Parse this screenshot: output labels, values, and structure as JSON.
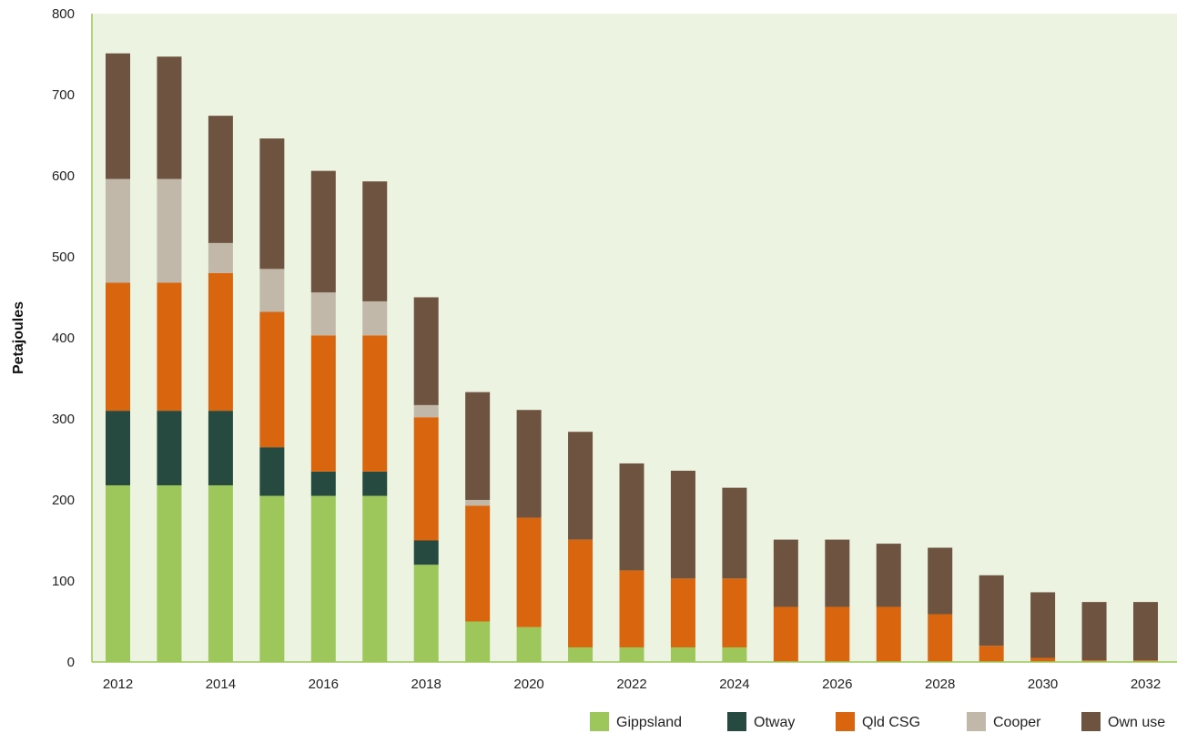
{
  "chart_data": {
    "type": "bar",
    "stacked": true,
    "xlabel": "",
    "ylabel": "Petajoules",
    "ylim": [
      0,
      800
    ],
    "yticks": [
      "0",
      "100",
      "200",
      "300",
      "400",
      "500",
      "600",
      "700",
      "800"
    ],
    "categories": [
      "2012",
      "2013",
      "2014",
      "2015",
      "2016",
      "2017",
      "2018",
      "2019",
      "2020",
      "2021",
      "2022",
      "2023",
      "2024",
      "2025",
      "2026",
      "2027",
      "2028",
      "2029",
      "2030",
      "2031",
      "2032"
    ],
    "xtick_labels": [
      "2012",
      "",
      "2014",
      "",
      "2016",
      "",
      "2018",
      "",
      "2020",
      "",
      "2022",
      "",
      "2024",
      "",
      "2026",
      "",
      "2028",
      "",
      "2030",
      "",
      "2032"
    ],
    "grid": false,
    "legend_position": "bottom-right",
    "background_color": "#ecf3e0",
    "series": [
      {
        "name": "Gippsland",
        "color": "#9dc75b",
        "values": [
          218,
          218,
          218,
          205,
          205,
          205,
          120,
          50,
          43,
          18,
          18,
          18,
          18,
          0,
          0,
          0,
          0,
          0,
          0,
          0,
          0
        ]
      },
      {
        "name": "Otway",
        "color": "#264a3f",
        "values": [
          92,
          92,
          92,
          60,
          30,
          30,
          30,
          0,
          0,
          0,
          0,
          0,
          0,
          0,
          0,
          0,
          0,
          0,
          0,
          0,
          0
        ]
      },
      {
        "name": "Qld CSG",
        "color": "#d9660e",
        "values": [
          158,
          158,
          170,
          167,
          168,
          168,
          152,
          143,
          135,
          133,
          95,
          85,
          85,
          68,
          68,
          68,
          59,
          20,
          5,
          2,
          2
        ]
      },
      {
        "name": "Cooper",
        "color": "#c2b8aa",
        "values": [
          128,
          128,
          37,
          53,
          53,
          42,
          15,
          7,
          0,
          0,
          0,
          0,
          0,
          0,
          0,
          0,
          0,
          0,
          0,
          0,
          0
        ]
      },
      {
        "name": "Own use",
        "color": "#6e5440",
        "values": [
          155,
          151,
          157,
          161,
          150,
          148,
          133,
          133,
          133,
          133,
          132,
          133,
          112,
          83,
          83,
          78,
          82,
          87,
          81,
          72,
          72
        ]
      }
    ]
  }
}
